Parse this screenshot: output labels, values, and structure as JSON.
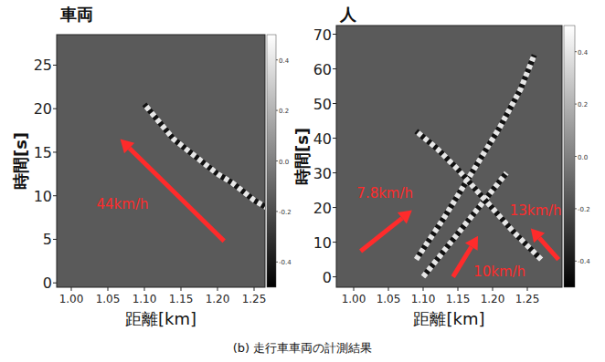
{
  "caption": "(b) 走行車車両の計測結果",
  "chart_data": [
    {
      "type": "line",
      "title": "車両",
      "x_label": "距離[km]",
      "y_label": "時間[s]",
      "xlim": [
        0.98,
        1.265
      ],
      "xticks": [
        {
          "value": 1,
          "label": "1.00"
        },
        {
          "value": 1.05,
          "label": "1.05"
        },
        {
          "value": 1.1,
          "label": "1.10"
        },
        {
          "value": 1.15,
          "label": "1.15"
        },
        {
          "value": 1.2,
          "label": "1.20"
        },
        {
          "value": 1.25,
          "label": "1.25"
        }
      ],
      "ylim": [
        -0.5,
        28.5
      ],
      "yticks": [
        0,
        5,
        10,
        15,
        20,
        25
      ],
      "colorbar": {
        "range": [
          -0.5,
          0.5
        ],
        "ticks": [
          0.4,
          0.2,
          {
            "value": 0,
            "label": "0.0"
          },
          -0.2,
          -0.4
        ]
      },
      "series": [
        {
          "x": [
            1.27,
            1.25,
            1.22,
            1.2,
            1.17,
            1.14,
            1.12,
            1.1
          ],
          "values": [
            8.5,
            9.5,
            11.5,
            12.5,
            14.5,
            16.5,
            18.5,
            20.5
          ],
          "color": "#e6e6e6",
          "line_style": "dashed"
        }
      ],
      "annotations": [
        {
          "text": "44km/h",
          "x": 1.07,
          "y": 9,
          "arrow": [
            1.209,
            4.8,
            1.067,
            16.5
          ],
          "color": "#ff2b2b"
        }
      ]
    },
    {
      "type": "line",
      "title": "人",
      "x_label": "距離[km]",
      "y_label": "時間[s]",
      "xlim": [
        0.975,
        1.3
      ],
      "xticks": [
        {
          "value": 1,
          "label": "1.00"
        },
        {
          "value": 1.05,
          "label": "1.05"
        },
        {
          "value": 1.1,
          "label": "1.10"
        },
        {
          "value": 1.15,
          "label": "1.15"
        },
        {
          "value": 1.2,
          "label": "1.20"
        },
        {
          "value": 1.25,
          "label": "1.25"
        }
      ],
      "ylim": [
        -3,
        72.5
      ],
      "yticks": [
        0,
        10,
        20,
        30,
        40,
        50,
        60,
        70
      ],
      "colorbar": {
        "range": [
          -0.5,
          0.5
        ],
        "ticks": [
          0.4,
          0.2,
          {
            "value": 0,
            "label": "0.0"
          },
          -0.2,
          -0.4
        ]
      },
      "series": [
        {
          "x": [
            1.09,
            1.13,
            1.17,
            1.21,
            1.24,
            1.26
          ],
          "values": [
            5,
            17,
            30,
            43,
            54,
            64
          ],
          "color": "#e6e6e6",
          "line_style": "dashed"
        },
        {
          "x": [
            1.1,
            1.14,
            1.18,
            1.22
          ],
          "values": [
            0,
            10,
            20,
            30
          ],
          "color": "#e6e6e6",
          "line_style": "dashed"
        },
        {
          "x": [
            1.27,
            1.23,
            1.19,
            1.15,
            1.12,
            1.09
          ],
          "values": [
            5,
            13,
            22,
            31,
            37,
            42
          ],
          "color": "#e6e6e6",
          "line_style": "dashed"
        }
      ],
      "annotations": [
        {
          "text": "7.8km/h",
          "x": 1.045,
          "y": 24,
          "arrow": [
            1.01,
            7.4,
            1.084,
            19.2
          ],
          "color": "#ff2b2b"
        },
        {
          "text": "10km/h",
          "x": 1.21,
          "y": 1.5,
          "arrow": [
            1.143,
            0,
            1.179,
            11.8
          ],
          "color": "#ff2b2b"
        },
        {
          "text": "13km/h",
          "x": 1.262,
          "y": 19,
          "arrow": [
            1.295,
            5,
            1.255,
            14
          ],
          "color": "#ff2b2b"
        }
      ]
    }
  ]
}
